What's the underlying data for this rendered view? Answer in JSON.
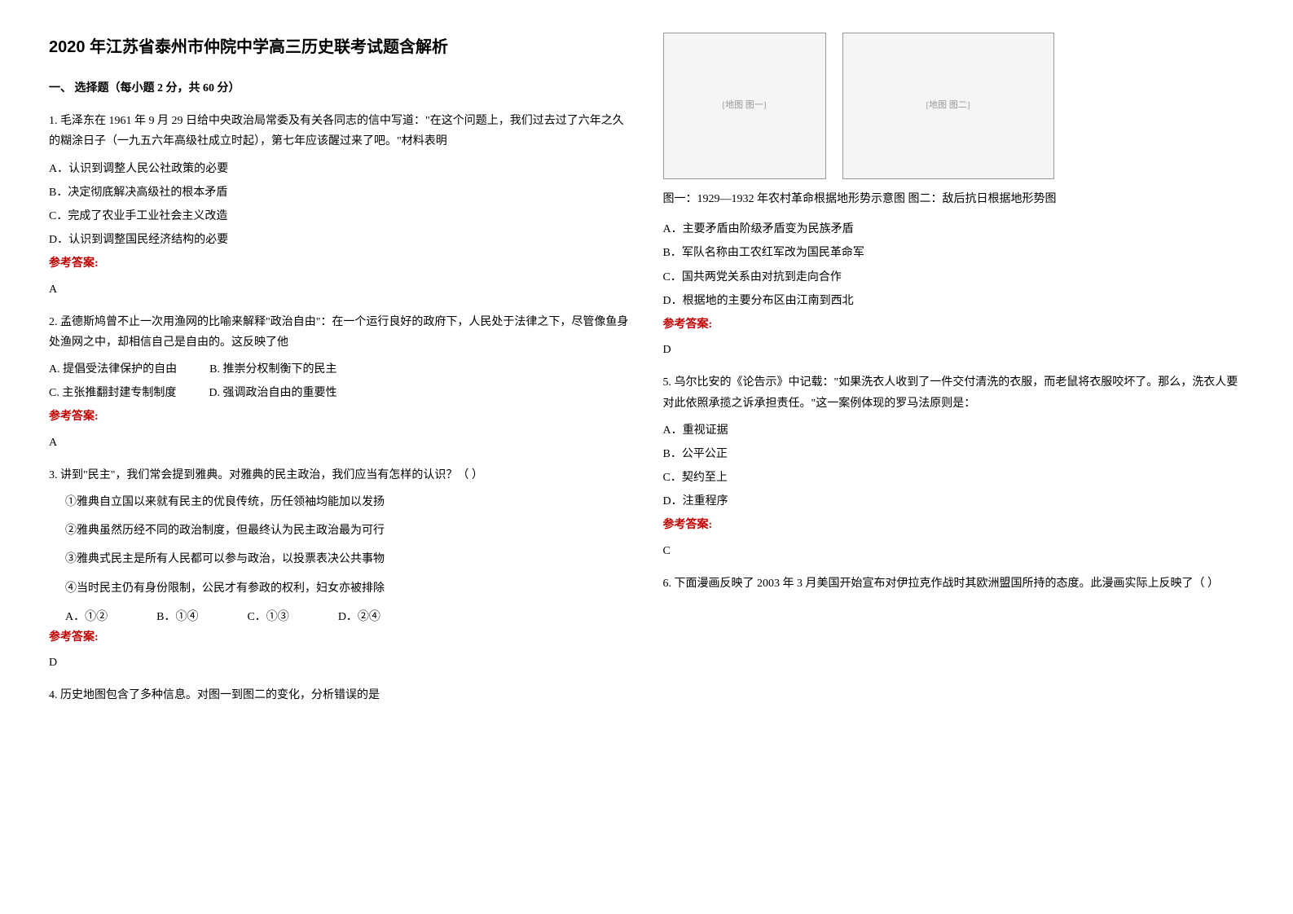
{
  "title": "2020 年江苏省泰州市仲院中学高三历史联考试题含解析",
  "section_heading": "一、 选择题（每小题 2 分，共 60 分）",
  "q1": {
    "stem": "1. 毛泽东在 1961 年 9 月 29 日给中央政治局常委及有关各同志的信中写道：\"在这个问题上，我们过去过了六年之久的糊涂日子（一九五六年高级社成立时起），第七年应该醒过来了吧。\"材料表明",
    "optA": "A．认识到调整人民公社政策的必要",
    "optB": "B．决定彻底解决高级社的根本矛盾",
    "optC": "C．完成了农业手工业社会主义改造",
    "optD": "D．认识到调整国民经济结构的必要",
    "answer_label": "参考答案:",
    "answer": "A"
  },
  "q2": {
    "stem": "2. 孟德斯鸠曾不止一次用渔网的比喻来解释\"政治自由\"：在一个运行良好的政府下，人民处于法律之下，尽管像鱼身处渔网之中，却相信自己是自由的。这反映了他",
    "optA": "A. 提倡受法律保护的自由",
    "optB": "B. 推崇分权制衡下的民主",
    "optC": "C. 主张推翻封建专制制度",
    "optD": "D. 强调政治自由的重要性",
    "answer_label": "参考答案:",
    "answer": "A"
  },
  "q3": {
    "stem": "3. 讲到\"民主\"，我们常会提到雅典。对雅典的民主政治，我们应当有怎样的认识？（   ）",
    "sub1": "①雅典自立国以来就有民主的优良传统，历任领袖均能加以发扬",
    "sub2": "②雅典虽然历经不同的政治制度，但最终认为民主政治最为可行",
    "sub3": "③雅典式民主是所有人民都可以参与政治，以投票表决公共事物",
    "sub4": "④当时民主仍有身份限制，公民才有参政的权利，妇女亦被排除",
    "optA": "A．①②",
    "optB": "B．①④",
    "optC": "C．①③",
    "optD": "D．②④",
    "answer_label": "参考答案:",
    "answer": "D"
  },
  "q4": {
    "stem": "4. 历史地图包含了多种信息。对图一到图二的变化，分析错误的是",
    "map1_placeholder": "[地图 图一]",
    "map2_placeholder": "[地图 图二]",
    "caption": "图一：1929—1932 年农村革命根据地形势示意图    图二：敌后抗日根据地形势图",
    "optA": "A．主要矛盾由阶级矛盾变为民族矛盾",
    "optB": "B．军队名称由工农红军改为国民革命军",
    "optC": "C．国共两党关系由对抗到走向合作",
    "optD": "D．根据地的主要分布区由江南到西北",
    "answer_label": "参考答案:",
    "answer": "D"
  },
  "q5": {
    "stem": "5. 乌尔比安的《论告示》中记载：\"如果洗衣人收到了一件交付清洗的衣服，而老鼠将衣服咬坏了。那么，洗衣人要对此依照承揽之诉承担责任。\"这一案例体现的罗马法原则是：",
    "optA": "A．重视证据",
    "optB": "B．公平公正",
    "optC": "C．契约至上",
    "optD": "D．注重程序",
    "answer_label": "参考答案:",
    "answer": "C"
  },
  "q6": {
    "stem": "6. 下面漫画反映了 2003 年 3 月美国开始宣布对伊拉克作战时其欧洲盟国所持的态度。此漫画实际上反映了（        ）"
  }
}
